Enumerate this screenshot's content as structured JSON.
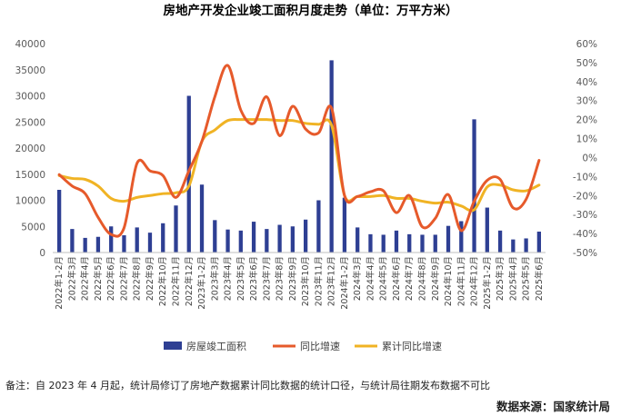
{
  "chart_data": {
    "type": "bar+line",
    "title": "房地产开发企业竣工面积月度走势（单位：万平方米）",
    "categories": [
      "2022年1-2月",
      "2022年3月",
      "2022年4月",
      "2022年5月",
      "2022年6月",
      "2022年7月",
      "2022年8月",
      "2022年9月",
      "2022年10月",
      "2022年11月",
      "2022年12月",
      "2023年1-2月",
      "2023年3月",
      "2023年4月",
      "2023年5月",
      "2023年6月",
      "2023年7月",
      "2023年8月",
      "2023年9月",
      "2023年10月",
      "2023年11月",
      "2023年12月",
      "2024年1-2月",
      "2024年3月",
      "2024年4月",
      "2024年5月",
      "2024年6月",
      "2024年7月",
      "2024年8月",
      "2024年9月",
      "2024年10月",
      "2024年11月",
      "2024年12月",
      "2025年1-2月",
      "2025年3月",
      "2025年4月",
      "2025年5月",
      "2025年6月"
    ],
    "series": [
      {
        "name": "房屋竣工面积",
        "type": "bar",
        "axis": "left",
        "color": "#2e3f93",
        "values": [
          12000,
          4500,
          2800,
          3000,
          5000,
          3300,
          4800,
          3800,
          5600,
          9000,
          30000,
          13000,
          6200,
          4400,
          4200,
          5900,
          4500,
          5300,
          5000,
          6300,
          10000,
          36800,
          10500,
          4800,
          3500,
          3400,
          4200,
          3500,
          3400,
          3400,
          5100,
          6000,
          25500,
          8600,
          4200,
          2500,
          2700,
          4000
        ]
      },
      {
        "name": "同比增速",
        "type": "line",
        "axis": "right",
        "color": "#e65a2b",
        "values": [
          -9.0,
          -15.0,
          -19.0,
          -31.5,
          -40.5,
          -37.0,
          -3.0,
          -7.0,
          -9.5,
          -21.0,
          -7.0,
          8.5,
          32.0,
          48.5,
          25.0,
          18.0,
          32.0,
          11.5,
          27.0,
          15.0,
          13.0,
          26.0,
          -20.0,
          -20.5,
          -18.0,
          -17.5,
          -29.0,
          -20.0,
          -36.5,
          -32.0,
          -19.5,
          -38.5,
          -23.0,
          -12.0,
          -11.5,
          -26.5,
          -22.0,
          -1.5
        ]
      },
      {
        "name": "累计同比增速",
        "type": "line",
        "axis": "right",
        "color": "#f0b324",
        "values": [
          -9.5,
          -11.0,
          -11.5,
          -15.0,
          -21.5,
          -23.0,
          -21.0,
          -20.0,
          -19.0,
          -18.5,
          -15.0,
          8.5,
          14.5,
          19.5,
          20.0,
          20.0,
          20.0,
          19.5,
          19.5,
          18.0,
          17.5,
          17.0,
          -20.0,
          -20.5,
          -20.5,
          -20.0,
          -21.5,
          -21.5,
          -23.0,
          -24.0,
          -23.5,
          -25.5,
          -27.5,
          -15.5,
          -14.5,
          -17.0,
          -17.5,
          -14.5
        ]
      }
    ],
    "left_axis": {
      "min": 0,
      "max": 40000,
      "ticks": [
        "0",
        "5000",
        "10000",
        "15000",
        "20000",
        "25000",
        "30000",
        "35000",
        "40000"
      ]
    },
    "right_axis": {
      "min": -50,
      "max": 60,
      "ticks": [
        "-50%",
        "-40%",
        "-30%",
        "-20%",
        "-10%",
        "0%",
        "10%",
        "20%",
        "30%",
        "40%",
        "50%",
        "60%"
      ]
    },
    "legend": [
      "房屋竣工面积",
      "同比增速",
      "累计同比增速"
    ],
    "legend_position": "bottom"
  },
  "note": "备注：自 2023 年 4 月起，统计局修订了房地产数据累计同比数据的统计口径，与统计局往期发布数据不可比",
  "source": "数据来源：国家统计局"
}
